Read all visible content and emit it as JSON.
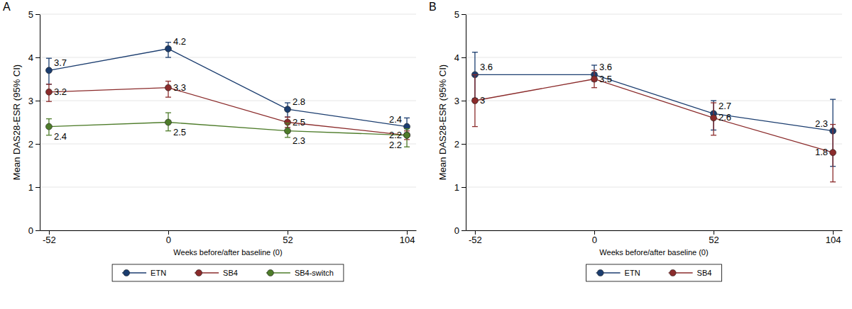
{
  "chart_data": [
    {
      "type": "line",
      "title": "A",
      "x_label": "Weeks before/after baseline (0)",
      "y_label": "Mean DAS28-ESR (95% CI)",
      "x": [
        -52,
        0,
        52,
        104
      ],
      "xlim": [
        -56,
        108
      ],
      "xticks": [
        -52,
        0,
        52,
        104
      ],
      "ylim": [
        0,
        5
      ],
      "yticks": [
        0,
        1,
        2,
        3,
        4,
        5
      ],
      "grid": true,
      "legend": "bottom",
      "data_labels": true,
      "series": [
        {
          "name": "ETN",
          "color": "#1b3d6f",
          "marker": "circle",
          "line_style": "solid",
          "values": [
            3.7,
            4.2,
            2.8,
            2.4
          ],
          "ci_lower": [
            3.38,
            4.0,
            2.62,
            2.25
          ],
          "ci_upper": [
            3.98,
            4.35,
            2.95,
            2.6
          ]
        },
        {
          "name": "SB4",
          "color": "#8b2b2b",
          "marker": "circle",
          "line_style": "solid",
          "values": [
            3.2,
            3.3,
            2.5,
            2.2
          ],
          "ci_lower": [
            2.98,
            3.08,
            2.38,
            2.1
          ],
          "ci_upper": [
            3.38,
            3.45,
            2.62,
            2.3
          ]
        },
        {
          "name": "SB4-switch",
          "color": "#4e7c2a",
          "marker": "circle",
          "line_style": "solid",
          "values": [
            2.4,
            2.5,
            2.3,
            2.2
          ],
          "ci_lower": [
            2.2,
            2.3,
            2.15,
            1.93
          ],
          "ci_upper": [
            2.58,
            2.72,
            2.48,
            2.35
          ]
        }
      ]
    },
    {
      "type": "line",
      "title": "B",
      "x_label": "Weeks before/after baseline (0)",
      "y_label": "Mean DAS28-ESR (95% CI)",
      "x": [
        -52,
        0,
        52,
        104
      ],
      "xlim": [
        -56,
        108
      ],
      "xticks": [
        -52,
        0,
        52,
        104
      ],
      "ylim": [
        0,
        5
      ],
      "yticks": [
        0,
        1,
        2,
        3,
        4,
        5
      ],
      "grid": true,
      "legend": "bottom",
      "data_labels": true,
      "series": [
        {
          "name": "ETN",
          "color": "#1b3d6f",
          "marker": "circle",
          "line_style": "solid",
          "values": [
            3.6,
            3.6,
            2.7,
            2.3
          ],
          "ci_lower": [
            3.05,
            3.45,
            2.32,
            1.48
          ],
          "ci_upper": [
            4.12,
            3.82,
            3.0,
            3.03
          ]
        },
        {
          "name": "SB4",
          "color": "#8b2b2b",
          "marker": "circle",
          "line_style": "solid",
          "values": [
            3.0,
            3.5,
            2.6,
            1.8
          ],
          "ci_lower": [
            2.4,
            3.3,
            2.2,
            1.12
          ],
          "ci_upper": [
            3.6,
            3.7,
            2.95,
            2.45
          ]
        }
      ]
    }
  ]
}
